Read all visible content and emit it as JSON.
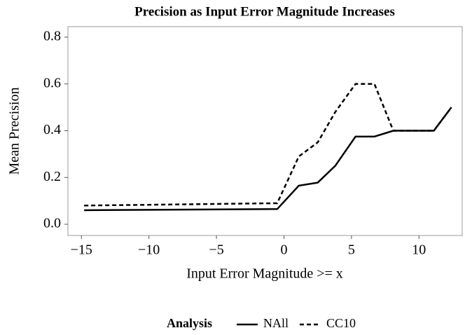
{
  "chart_data": {
    "type": "line",
    "title": "Precision as Input Error Magnitude Increases",
    "x_label": "Input Error Magnitude >= x",
    "y_label": "Mean Precision",
    "legend_title": "Analysis",
    "legend_position": "bottom",
    "series": [
      {
        "name": "NAll",
        "color": "#000000",
        "line_style": "solid",
        "x": [
          -14.8,
          -0.5,
          1.1,
          2.5,
          3.8,
          5.3,
          6.7,
          8.1,
          11.1,
          12.4
        ],
        "values": [
          0.06,
          0.065,
          0.165,
          0.178,
          0.25,
          0.375,
          0.375,
          0.4,
          0.4,
          0.5
        ]
      },
      {
        "name": "CC10",
        "color": "#000000",
        "line_style": "dashed",
        "x": [
          -14.8,
          -0.5,
          1.1,
          2.5,
          3.8,
          5.3,
          6.7,
          8.1,
          11.1,
          12.4
        ],
        "values": [
          0.08,
          0.09,
          0.29,
          0.35,
          0.48,
          0.6,
          0.6,
          0.4,
          0.4,
          0.5
        ]
      }
    ],
    "xlim": [
      -16.0,
      13.2
    ],
    "xticks": [
      {
        "value": -15,
        "label": "−15"
      },
      {
        "value": -10,
        "label": "−10"
      },
      {
        "value": -5,
        "label": "−5"
      },
      0,
      5,
      10
    ],
    "ylim": [
      -0.048,
      0.845
    ],
    "yticks": [
      {
        "value": 0,
        "label": "0.0"
      },
      0.2,
      0.4,
      0.6,
      0.8
    ],
    "grid": false
  }
}
